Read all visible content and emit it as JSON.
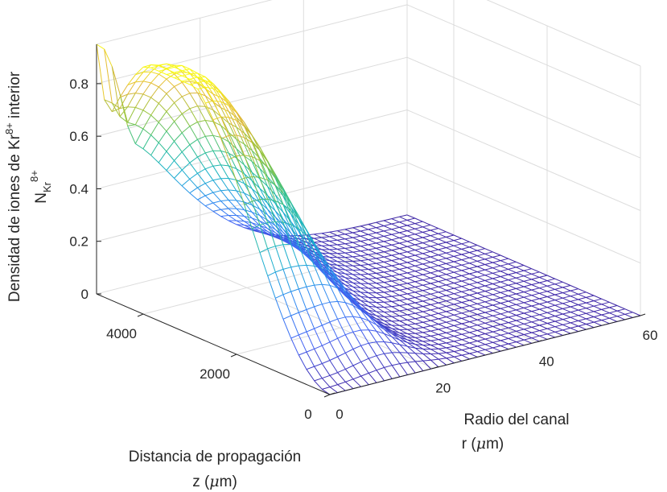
{
  "chart_data": {
    "type": "surface",
    "title": "",
    "colormap": "parula",
    "colormap_stops": [
      "#3e26a8",
      "#4264f5",
      "#2d8ef0",
      "#18b1c9",
      "#33c08a",
      "#98c43a",
      "#e2b739",
      "#f9fb14"
    ],
    "xlabel": [
      "Radio del canal",
      "r (",
      "μ",
      "m)"
    ],
    "ylabel": [
      "Distancia de propagación",
      "z (",
      "μ",
      "m)"
    ],
    "zlabel": {
      "line1_prefix": "Densidad de iones de Kr",
      "line1_sup": "8+",
      "line1_suffix": " interior",
      "line2_main": "N",
      "line2_sub": "Kr",
      "line2_sup": "8+"
    },
    "xlim": [
      0,
      60
    ],
    "ylim": [
      0,
      5000
    ],
    "zlim": [
      0,
      0.95
    ],
    "xticks": [
      0,
      20,
      40,
      60
    ],
    "yticks": [
      0,
      2000,
      4000
    ],
    "zticks": [
      0,
      0.2,
      0.4,
      0.6,
      0.8
    ],
    "grid": true,
    "mesh": {
      "r_count": 41,
      "z_count": 31,
      "description_peaks": [
        {
          "z": 5000,
          "r": 0,
          "value": 0.95
        },
        {
          "z": 3000,
          "r": 15,
          "value": 0.6
        },
        {
          "z": 0,
          "r": 0,
          "value": 0.0
        }
      ]
    }
  }
}
